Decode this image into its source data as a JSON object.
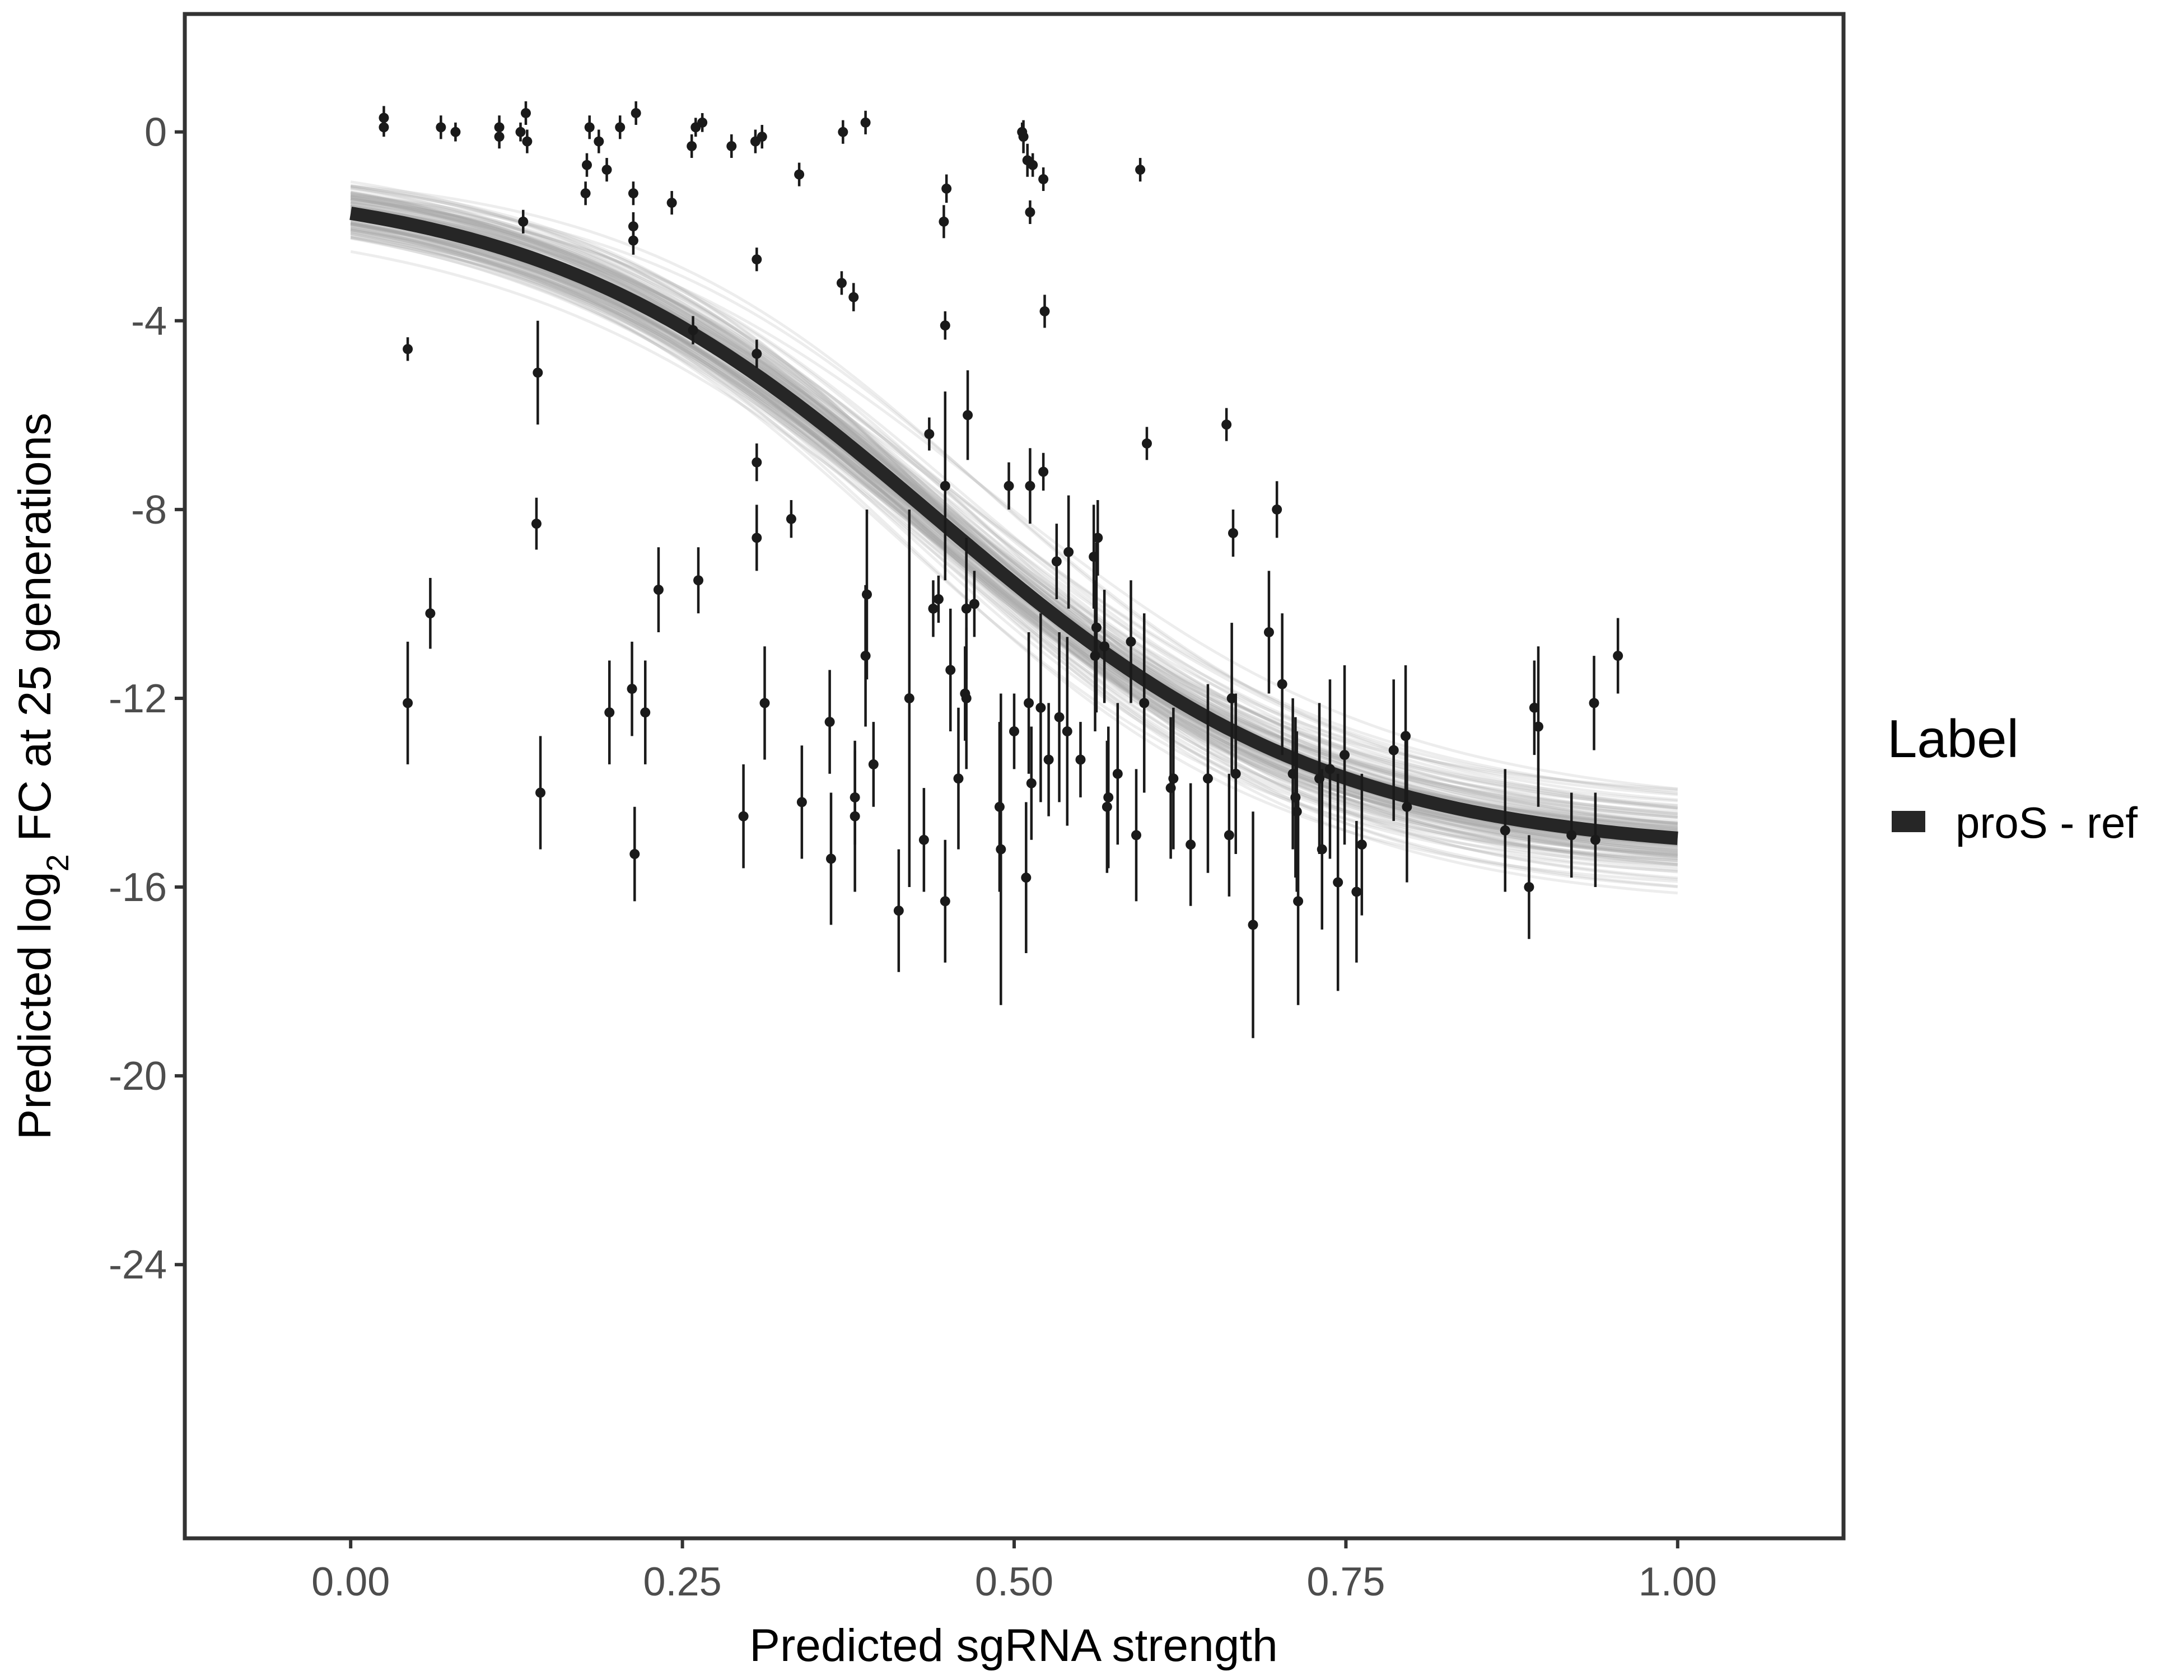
{
  "chart_data": {
    "type": "scatter",
    "xlabel": "Predicted sgRNA strength",
    "ylabel_prefix": "Predicted  log",
    "ylabel_subscript": "2",
    "ylabel_suffix": " FC at 25 generations",
    "xlim": [
      -0.125,
      1.125
    ],
    "ylim": [
      -29.8,
      2.5
    ],
    "x_ticks": [
      0,
      0.25,
      0.5,
      0.75,
      1
    ],
    "x_tick_labels": [
      "0.00",
      "0.25",
      "0.50",
      "0.75",
      "1.00"
    ],
    "y_ticks": [
      0,
      -4,
      -8,
      -12,
      -16,
      -20,
      -24
    ],
    "y_tick_labels": [
      "0",
      "-4",
      "-8",
      "-12",
      "-16",
      "-20",
      "-24"
    ],
    "grid": false,
    "legend": {
      "title": "Label",
      "position": "right",
      "entries": [
        {
          "label": "proS - ref",
          "color": "#262626"
        }
      ]
    },
    "fit_curve": {
      "name": "proS - ref",
      "model": "sigmoid",
      "upper": -1.0,
      "lower": -15.3,
      "midpoint": 0.44,
      "scale": 0.15,
      "color": "#262626"
    },
    "posterior_draws": {
      "count": 120,
      "color": "#a6a6a6"
    },
    "points": [
      [
        0.025,
        0.3,
        0.25
      ],
      [
        0.025,
        0.1,
        0.2
      ],
      [
        0.043,
        -4.6,
        0.25
      ],
      [
        0.043,
        -12.1,
        1.3
      ],
      [
        0.06,
        -10.2,
        0.75
      ],
      [
        0.068,
        0.1,
        0.25
      ],
      [
        0.079,
        0.0,
        0.2
      ],
      [
        0.112,
        0.1,
        0.25
      ],
      [
        0.112,
        -0.1,
        0.25
      ],
      [
        0.128,
        0.0,
        0.2
      ],
      [
        0.13,
        -1.9,
        0.25
      ],
      [
        0.132,
        0.4,
        0.25
      ],
      [
        0.133,
        -0.2,
        0.25
      ],
      [
        0.14,
        -8.3,
        0.55
      ],
      [
        0.141,
        -5.1,
        1.1
      ],
      [
        0.143,
        -14.0,
        1.2
      ],
      [
        0.177,
        -1.3,
        0.25
      ],
      [
        0.178,
        -0.7,
        0.25
      ],
      [
        0.18,
        0.1,
        0.25
      ],
      [
        0.187,
        -0.2,
        0.25
      ],
      [
        0.193,
        -0.8,
        0.25
      ],
      [
        0.195,
        -12.3,
        1.1
      ],
      [
        0.203,
        0.1,
        0.25
      ],
      [
        0.212,
        -11.8,
        1.0
      ],
      [
        0.213,
        -2.0,
        0.3
      ],
      [
        0.213,
        -2.3,
        0.3
      ],
      [
        0.213,
        -1.3,
        0.25
      ],
      [
        0.214,
        -15.3,
        1.0
      ],
      [
        0.215,
        0.4,
        0.25
      ],
      [
        0.222,
        -12.3,
        1.1
      ],
      [
        0.232,
        -9.7,
        0.9
      ],
      [
        0.242,
        -1.5,
        0.25
      ],
      [
        0.257,
        -0.3,
        0.25
      ],
      [
        0.258,
        -4.2,
        0.3
      ],
      [
        0.26,
        0.1,
        0.2
      ],
      [
        0.262,
        -9.5,
        0.7
      ],
      [
        0.265,
        0.2,
        0.2
      ],
      [
        0.287,
        -0.3,
        0.25
      ],
      [
        0.296,
        -14.5,
        1.1
      ],
      [
        0.305,
        -0.2,
        0.25
      ],
      [
        0.306,
        -2.7,
        0.25
      ],
      [
        0.306,
        -4.7,
        0.3
      ],
      [
        0.306,
        -7.0,
        0.4
      ],
      [
        0.306,
        -8.6,
        0.7
      ],
      [
        0.31,
        -0.1,
        0.25
      ],
      [
        0.312,
        -12.1,
        1.2
      ],
      [
        0.332,
        -8.2,
        0.4
      ],
      [
        0.338,
        -0.9,
        0.25
      ],
      [
        0.34,
        -14.2,
        1.2
      ],
      [
        0.361,
        -12.5,
        1.1
      ],
      [
        0.362,
        -15.4,
        1.4
      ],
      [
        0.37,
        -3.2,
        0.25
      ],
      [
        0.371,
        0.0,
        0.25
      ],
      [
        0.379,
        -3.5,
        0.3
      ],
      [
        0.38,
        -14.1,
        1.0
      ],
      [
        0.38,
        -14.5,
        1.6
      ],
      [
        0.388,
        0.2,
        0.25
      ],
      [
        0.388,
        -11.1,
        1.5
      ],
      [
        0.389,
        -9.8,
        1.8
      ],
      [
        0.394,
        -13.4,
        0.9
      ],
      [
        0.413,
        -16.5,
        1.3
      ],
      [
        0.421,
        -12.0,
        4.0
      ],
      [
        0.432,
        -15.0,
        1.1
      ],
      [
        0.436,
        -6.4,
        0.35
      ],
      [
        0.439,
        -10.1,
        0.6
      ],
      [
        0.443,
        -9.9,
        0.5
      ],
      [
        0.447,
        -1.9,
        0.35
      ],
      [
        0.448,
        -4.1,
        0.3
      ],
      [
        0.448,
        -7.5,
        2.0
      ],
      [
        0.448,
        -16.3,
        1.3
      ],
      [
        0.449,
        -1.2,
        0.3
      ],
      [
        0.452,
        -11.4,
        1.3
      ],
      [
        0.458,
        -13.7,
        1.5
      ],
      [
        0.463,
        -11.9,
        1.0
      ],
      [
        0.464,
        -12.0,
        1.5
      ],
      [
        0.464,
        -10.1,
        1.5
      ],
      [
        0.465,
        -6.0,
        0.95
      ],
      [
        0.47,
        -10.0,
        0.7
      ],
      [
        0.489,
        -14.3,
        1.8
      ],
      [
        0.49,
        -15.2,
        3.3
      ],
      [
        0.496,
        -7.5,
        0.5
      ],
      [
        0.5,
        -12.7,
        0.8
      ],
      [
        0.506,
        0.0,
        0.2
      ],
      [
        0.507,
        -0.1,
        0.35
      ],
      [
        0.509,
        -15.8,
        1.6
      ],
      [
        0.51,
        -0.6,
        0.35
      ],
      [
        0.511,
        -12.1,
        1.5
      ],
      [
        0.512,
        -7.5,
        0.8
      ],
      [
        0.512,
        -1.7,
        0.25
      ],
      [
        0.513,
        -13.8,
        1.2
      ],
      [
        0.514,
        -0.7,
        0.25
      ],
      [
        0.52,
        -12.2,
        2.0
      ],
      [
        0.522,
        -1.0,
        0.25
      ],
      [
        0.522,
        -7.2,
        0.4
      ],
      [
        0.523,
        -3.8,
        0.35
      ],
      [
        0.526,
        -13.3,
        1.2
      ],
      [
        0.532,
        -9.1,
        0.8
      ],
      [
        0.534,
        -12.4,
        1.8
      ],
      [
        0.54,
        -12.7,
        2.0
      ],
      [
        0.541,
        -8.9,
        1.2
      ],
      [
        0.55,
        -13.3,
        0.8
      ],
      [
        0.56,
        -9.0,
        1.1
      ],
      [
        0.561,
        -11.1,
        1.6
      ],
      [
        0.562,
        -10.5,
        1.8
      ],
      [
        0.563,
        -8.6,
        0.8
      ],
      [
        0.568,
        -10.9,
        1.2
      ],
      [
        0.57,
        -14.3,
        1.4
      ],
      [
        0.571,
        -14.1,
        1.5
      ],
      [
        0.578,
        -13.6,
        1.5
      ],
      [
        0.588,
        -10.8,
        1.3
      ],
      [
        0.592,
        -14.9,
        1.4
      ],
      [
        0.595,
        -0.8,
        0.25
      ],
      [
        0.598,
        -12.1,
        1.9
      ],
      [
        0.6,
        -6.6,
        0.35
      ],
      [
        0.618,
        -13.9,
        1.5
      ],
      [
        0.62,
        -13.7,
        1.5
      ],
      [
        0.633,
        -15.1,
        1.3
      ],
      [
        0.646,
        -13.7,
        2.0
      ],
      [
        0.66,
        -6.2,
        0.35
      ],
      [
        0.662,
        -14.9,
        1.3
      ],
      [
        0.664,
        -12.0,
        1.6
      ],
      [
        0.665,
        -8.5,
        0.5
      ],
      [
        0.667,
        -13.6,
        1.7
      ],
      [
        0.68,
        -16.8,
        2.4
      ],
      [
        0.692,
        -10.6,
        1.3
      ],
      [
        0.698,
        -8.0,
        0.6
      ],
      [
        0.702,
        -11.7,
        1.5
      ],
      [
        0.71,
        -13.6,
        1.6
      ],
      [
        0.712,
        -14.1,
        1.7
      ],
      [
        0.713,
        -14.4,
        1.7
      ],
      [
        0.714,
        -16.3,
        2.2
      ],
      [
        0.73,
        -13.7,
        1.6
      ],
      [
        0.732,
        -15.2,
        1.7
      ],
      [
        0.738,
        -13.5,
        1.9
      ],
      [
        0.744,
        -15.9,
        2.3
      ],
      [
        0.749,
        -13.2,
        1.9
      ],
      [
        0.758,
        -16.1,
        1.5
      ],
      [
        0.762,
        -15.1,
        1.5
      ],
      [
        0.786,
        -13.1,
        1.5
      ],
      [
        0.795,
        -12.8,
        1.5
      ],
      [
        0.796,
        -14.3,
        1.6
      ],
      [
        0.87,
        -14.8,
        1.3
      ],
      [
        0.888,
        -16.0,
        1.1
      ],
      [
        0.892,
        -12.2,
        1.0
      ],
      [
        0.895,
        -12.6,
        1.7
      ],
      [
        0.92,
        -14.9,
        0.9
      ],
      [
        0.937,
        -12.1,
        1.0
      ],
      [
        0.938,
        -15.0,
        1.0
      ],
      [
        0.955,
        -11.1,
        0.8
      ]
    ]
  }
}
